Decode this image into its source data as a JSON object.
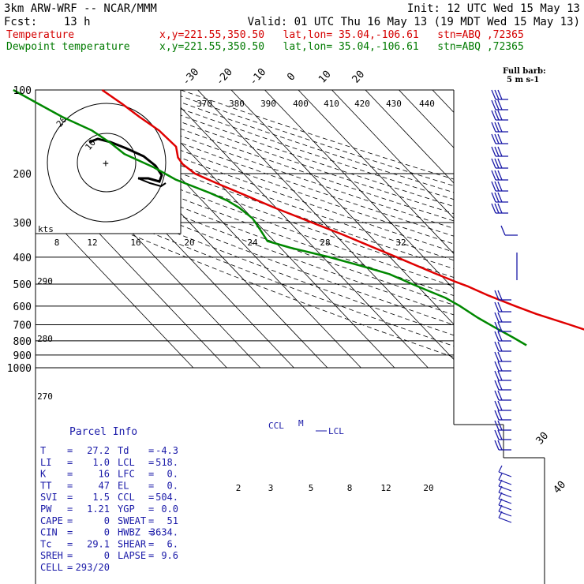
{
  "header": {
    "line1_left": "3km ARW-WRF -- NCAR/MMM",
    "line1_right": "Init: 12 UTC Wed 15 May 13",
    "line2_left": "Fcst:    13 h",
    "line2_right": "Valid: 01 UTC Thu 16 May 13 (19 MDT Wed 15 May 13)",
    "temp_label": "Temperature",
    "temp_meta": "x,y=221.55,350.50   lat,lon= 35.04,-106.61   stn=ABQ ,72365",
    "dew_label": "Dewpoint temperature",
    "dew_meta": "x,y=221.55,350.50   lat,lon= 35.04,-106.61   stn=ABQ ,72365"
  },
  "colors": {
    "temperature": "#e00000",
    "dewpoint": "#008800",
    "parcel_text": "#1a1aa8",
    "barbs": "#1a1aa8"
  },
  "barb_label": [
    "Full barb:",
    "5 m s-1"
  ],
  "hodograph": {
    "ring_label": "20",
    "inner_label": "10",
    "unit_label": "kts",
    "speed_ticks": [
      "8",
      "12",
      "16",
      "20",
      "24",
      "28",
      "32"
    ]
  },
  "theta_labels": [
    "370",
    "380",
    "390",
    "400",
    "410",
    "420",
    "430",
    "440"
  ],
  "theta_lower_labels": [
    "290",
    "280",
    "270"
  ],
  "mixing_ratio_labels": [
    "2",
    "3",
    "5",
    "8",
    "12",
    "20"
  ],
  "level_markers": [
    "CCL",
    "M",
    "LCL"
  ],
  "parcel_info": {
    "title": "Parcel Info",
    "rows": [
      {
        "l1": "T",
        "v1": "27.2",
        "l2": "Td",
        "v2": "-4.3"
      },
      {
        "l1": "LI",
        "v1": "1.0",
        "l2": "LCL",
        "v2": "518."
      },
      {
        "l1": "K",
        "v1": "16",
        "l2": "LFC",
        "v2": "0."
      },
      {
        "l1": "TT",
        "v1": "47",
        "l2": "EL",
        "v2": "0."
      },
      {
        "l1": "SVI",
        "v1": "1.5",
        "l2": "CCL",
        "v2": "504."
      },
      {
        "l1": "PW",
        "v1": "1.21",
        "l2": "YGP",
        "v2": "0.0"
      },
      {
        "l1": "CAPE",
        "v1": "0",
        "l2": "SWEAT",
        "v2": "51"
      },
      {
        "l1": "CIN",
        "v1": "0",
        "l2": "HWBZ",
        "v2": "3634."
      },
      {
        "l1": "Tc",
        "v1": "29.1",
        "l2": "SHEAR",
        "v2": "6."
      },
      {
        "l1": "SREH",
        "v1": "0",
        "l2": "LAPSE",
        "v2": "9.6"
      },
      {
        "l1": "CELL",
        "v1": "293/20",
        "l2": "",
        "v2": ""
      }
    ]
  },
  "chart_data": {
    "type": "line",
    "subtype": "skew-T log-P sounding",
    "y_axis": {
      "scale": "log",
      "ticks": [
        100,
        200,
        300,
        400,
        500,
        600,
        700,
        800,
        900,
        1000
      ]
    },
    "x_axis": {
      "skewed": true,
      "ticks": [
        -80,
        -70,
        -60,
        -50,
        -40,
        -30,
        -20,
        -10,
        0,
        10,
        20,
        30,
        40
      ]
    },
    "grid": true,
    "series": [
      {
        "name": "Temperature",
        "color": "#e00000",
        "points": [
          {
            "p": 830,
            "t": 27.2
          },
          {
            "p": 760,
            "t": 20.5
          },
          {
            "p": 700,
            "t": 14.5
          },
          {
            "p": 640,
            "t": 7.5
          },
          {
            "p": 600,
            "t": 3.5
          },
          {
            "p": 550,
            "t": -1.5
          },
          {
            "p": 510,
            "t": -5.0
          },
          {
            "p": 490,
            "t": -7.5
          },
          {
            "p": 455,
            "t": -11.5
          },
          {
            "p": 400,
            "t": -18.0
          },
          {
            "p": 360,
            "t": -23.5
          },
          {
            "p": 330,
            "t": -28.0
          },
          {
            "p": 300,
            "t": -33.5
          },
          {
            "p": 265,
            "t": -40.5
          },
          {
            "p": 240,
            "t": -45.5
          },
          {
            "p": 220,
            "t": -50.0
          },
          {
            "p": 200,
            "t": -54.5
          },
          {
            "p": 185,
            "t": -55.5
          },
          {
            "p": 175,
            "t": -55.0
          },
          {
            "p": 160,
            "t": -52.5
          },
          {
            "p": 140,
            "t": -53.0
          },
          {
            "p": 125,
            "t": -55.0
          },
          {
            "p": 112,
            "t": -56.5
          },
          {
            "p": 100,
            "t": -58.5
          }
        ]
      },
      {
        "name": "Dewpoint temperature",
        "color": "#008800",
        "points": [
          {
            "p": 830,
            "t": -4.3
          },
          {
            "p": 780,
            "t": -6.0
          },
          {
            "p": 720,
            "t": -8.5
          },
          {
            "p": 660,
            "t": -11.0
          },
          {
            "p": 600,
            "t": -13.0
          },
          {
            "p": 560,
            "t": -15.0
          },
          {
            "p": 530,
            "t": -18.0
          },
          {
            "p": 500,
            "t": -21.0
          },
          {
            "p": 460,
            "t": -25.0
          },
          {
            "p": 430,
            "t": -31.0
          },
          {
            "p": 400,
            "t": -38.0
          },
          {
            "p": 370,
            "t": -47.0
          },
          {
            "p": 350,
            "t": -52.0
          },
          {
            "p": 320,
            "t": -51.0
          },
          {
            "p": 290,
            "t": -50.0
          },
          {
            "p": 265,
            "t": -51.0
          },
          {
            "p": 250,
            "t": -52.5
          },
          {
            "p": 235,
            "t": -55.5
          },
          {
            "p": 210,
            "t": -62.0
          },
          {
            "p": 190,
            "t": -65.0
          },
          {
            "p": 170,
            "t": -70.0
          },
          {
            "p": 155,
            "t": -71.0
          },
          {
            "p": 140,
            "t": -73.0
          },
          {
            "p": 125,
            "t": -78.0
          },
          {
            "p": 110,
            "t": -82.0
          },
          {
            "p": 100,
            "t": -85.0
          }
        ]
      }
    ]
  }
}
